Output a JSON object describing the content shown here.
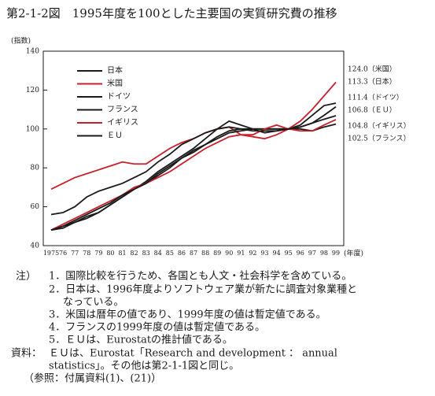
{
  "chart_data": {
    "type": "line",
    "title": "第2-1-2図　1995年度を100とした主要国の実質研究費の推移",
    "y_label": "(指数)",
    "x_label": "(年度)",
    "categories": [
      "1975",
      "76",
      "77",
      "78",
      "79",
      "80",
      "81",
      "82",
      "83",
      "84",
      "85",
      "86",
      "87",
      "88",
      "89",
      "90",
      "91",
      "92",
      "93",
      "94",
      "95",
      "96",
      "97",
      "98",
      "99"
    ],
    "ylim": [
      40,
      140
    ],
    "yticks": [
      40,
      60,
      80,
      100,
      120,
      140
    ],
    "series": [
      {
        "name": "日本",
        "color": "#1a1a1a",
        "values": [
          48,
          50,
          52,
          55,
          57,
          61,
          65,
          69,
          73,
          78,
          82,
          86,
          90,
          95,
          100,
          104,
          102,
          100,
          98,
          99,
          100,
          102,
          107,
          112,
          113.3
        ]
      },
      {
        "name": "米国",
        "color": "#c8202a",
        "values": [
          69,
          72,
          75,
          77,
          79,
          81,
          83,
          82,
          82,
          86,
          90,
          93,
          95,
          98,
          100,
          101,
          97,
          96,
          95,
          97,
          100,
          104,
          110,
          117,
          124.0
        ]
      },
      {
        "name": "ドイツ",
        "color": "#1a1a1a",
        "values": [
          56,
          57,
          60,
          65,
          68,
          70,
          72,
          75,
          78,
          83,
          87,
          92,
          95,
          98,
          100,
          101,
          100,
          100,
          100,
          100,
          100,
          101,
          103,
          107,
          111.4
        ]
      },
      {
        "name": "フランス",
        "color": "#1a1a1a",
        "values": [
          48,
          49,
          52,
          54,
          57,
          61,
          65,
          69,
          72,
          76,
          80,
          85,
          88,
          92,
          95,
          98,
          99,
          100,
          100,
          100,
          100,
          100,
          99,
          101,
          102.5
        ]
      },
      {
        "name": "イギリス",
        "color": "#c8202a",
        "values": [
          48,
          51,
          54,
          57,
          60,
          63,
          66,
          70,
          72,
          75,
          78,
          82,
          86,
          90,
          93,
          96,
          97,
          97,
          100,
          102,
          100,
          99,
          99,
          102,
          104.8
        ]
      },
      {
        "name": "ＥＵ",
        "color": "#1a1a1a",
        "values": [
          48,
          50,
          53,
          56,
          59,
          62,
          66,
          69,
          72,
          77,
          81,
          85,
          89,
          92,
          96,
          99,
          100,
          99,
          99,
          99,
          100,
          101,
          103,
          105,
          106.8
        ]
      }
    ],
    "annotations": [
      "124.0（米国）",
      "113.3（日本）",
      "111.4（ドイツ）",
      "106.8（ＥＵ）",
      "104.8（イギリス）",
      "102.5（フランス）"
    ]
  },
  "notes": {
    "label": "注）",
    "lines": [
      "1．国際比較を行うため、各国とも人文・社会科学を含めている。",
      "2．日本は、1996年度よりソフトウェア業が新たに調査対象業種と",
      "なっている。",
      "3．米国は暦年の値であり、1999年度の値は暫定値である。",
      "4．フランスの1999年度の値は暫定値である。",
      "5．ＥＵは、Eurostatの推計値である。"
    ]
  },
  "source": {
    "label": "資料：",
    "lines": [
      "ＥＵは、Eurostat「Research and development ： annual",
      "statistics」。その他は第2-1-1図と同じ。"
    ]
  },
  "reference": "（参照：付属資料(1)、(21)）"
}
